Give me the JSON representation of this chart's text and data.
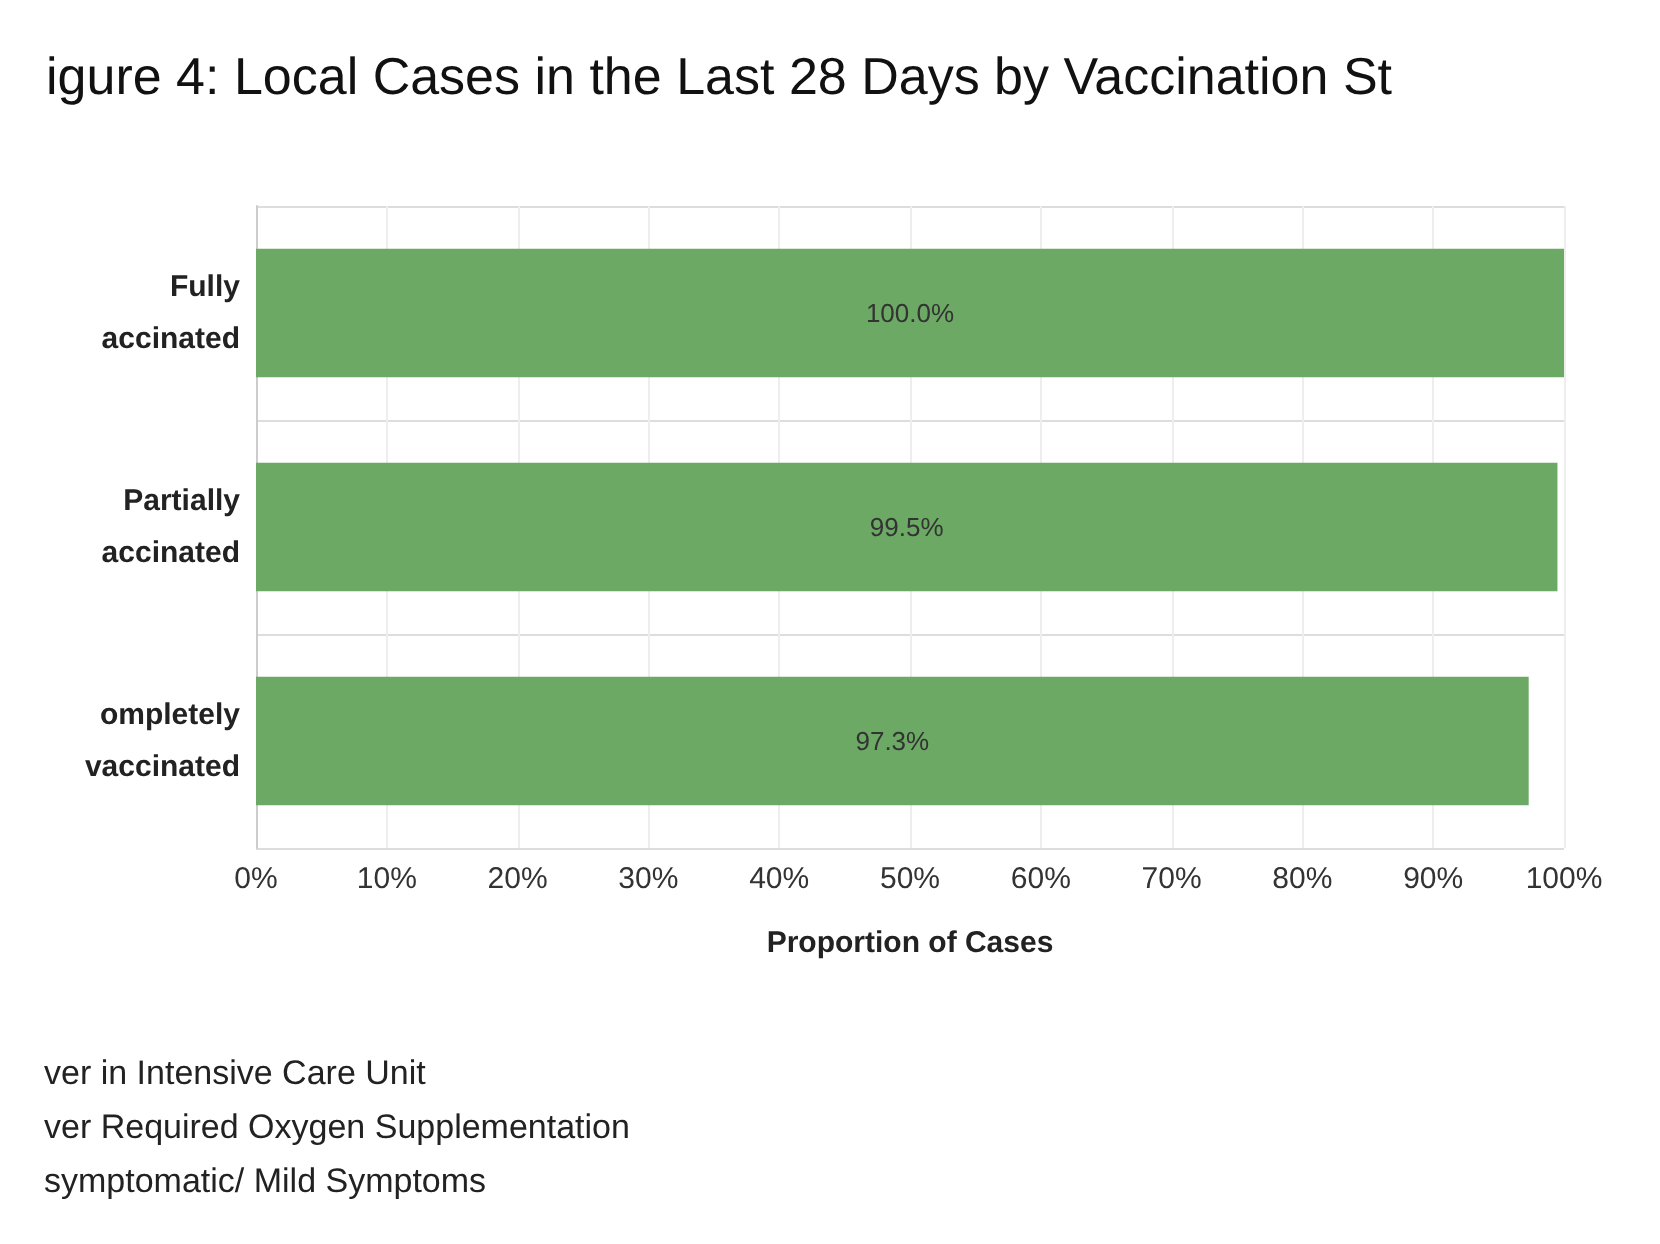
{
  "chart_data": {
    "type": "bar",
    "orientation": "horizontal",
    "title": "igure 4: Local Cases in the Last 28 Days by Vaccination St",
    "categories": [
      "Fully\naccinated",
      "Partially\naccinated",
      "ompletely\nvaccinated"
    ],
    "series": [
      {
        "color": "#6ca965",
        "values": [
          100,
          99.5,
          97.3
        ],
        "value_labels": [
          "100.0%",
          "99.5%",
          "97.3%"
        ]
      }
    ],
    "xlim": [
      0,
      100
    ],
    "xticks": [
      {
        "value": 0,
        "label": "0%"
      },
      {
        "value": 10,
        "label": "10%"
      },
      {
        "value": 20,
        "label": "20%"
      },
      {
        "value": 30,
        "label": "30%"
      },
      {
        "value": 40,
        "label": "40%"
      },
      {
        "value": 50,
        "label": "50%"
      },
      {
        "value": 60,
        "label": "60%"
      },
      {
        "value": 70,
        "label": "70%"
      },
      {
        "value": 80,
        "label": "80%"
      },
      {
        "value": 90,
        "label": "90%"
      },
      {
        "value": 100,
        "label": "100%"
      }
    ],
    "xlabel": "Proportion of Cases",
    "grid": "x",
    "annotations": [
      "ver in Intensive Care Unit",
      "ver Required Oxygen Supplementation",
      "symptomatic/ Mild Symptoms"
    ]
  }
}
